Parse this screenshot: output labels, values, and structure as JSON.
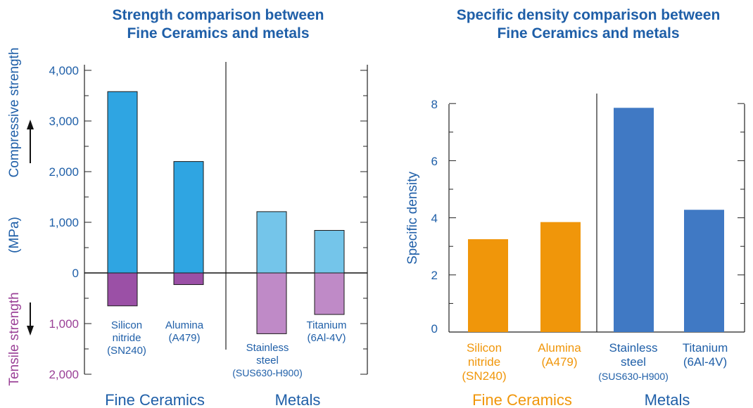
{
  "colors": {
    "blue_text": "#1f5fa8",
    "purple_text": "#9a3f96",
    "orange": "#f0960a",
    "ceramic_comp": "#2fa5e2",
    "metal_comp": "#74c5ea",
    "ceramic_tens": "#9b50a6",
    "metal_tens": "#bf8ac7",
    "density_metal": "#4079c4"
  },
  "chart_data": [
    {
      "type": "bar",
      "title_lines": [
        "Strength comparison between",
        "Fine Ceramics and metals"
      ],
      "ylabel_top": "Compressive strength",
      "ylabel_unit": "(MPa)",
      "ylabel_bottom": "Tensile strength",
      "yticks_up": [
        "4,000",
        "3,000",
        "2,000",
        "1,000",
        "0"
      ],
      "yticks_down": [
        "1,000",
        "2,000"
      ],
      "ylim": [
        -2000,
        4000
      ],
      "categories": [
        {
          "lines": [
            "Silicon",
            "nitride",
            "(SN240)"
          ],
          "group": "ceramic"
        },
        {
          "lines": [
            "Alumina",
            "(A479)"
          ],
          "group": "ceramic"
        },
        {
          "lines": [
            "Stainless",
            "steel",
            "(SUS630-H900)"
          ],
          "group": "metal"
        },
        {
          "lines": [
            "Titanium",
            "(6Al-4V)"
          ],
          "group": "metal"
        }
      ],
      "series": [
        {
          "name": "Compressive strength",
          "values": [
            3580,
            2200,
            1210,
            840
          ]
        },
        {
          "name": "Tensile strength",
          "values": [
            650,
            230,
            1200,
            820
          ]
        }
      ],
      "groups": [
        "Fine Ceramics",
        "Metals"
      ]
    },
    {
      "type": "bar",
      "title_lines": [
        "Specific density comparison between",
        "Fine Ceramics and metals"
      ],
      "ylabel": "Specific density",
      "yticks": [
        "8",
        "6",
        "4",
        "2",
        "0"
      ],
      "ylim": [
        0,
        8
      ],
      "categories": [
        {
          "lines": [
            "Silicon",
            "nitride",
            "(SN240)"
          ],
          "group": "ceramic"
        },
        {
          "lines": [
            "Alumina",
            "(A479)"
          ],
          "group": "ceramic"
        },
        {
          "lines": [
            "Stainless",
            "steel",
            "(SUS630-H900)"
          ],
          "group": "metal"
        },
        {
          "lines": [
            "Titanium",
            "(6Al-4V)"
          ],
          "group": "metal"
        }
      ],
      "values": [
        3.25,
        3.85,
        7.85,
        4.28
      ],
      "groups": [
        "Fine Ceramics",
        "Metals"
      ]
    }
  ]
}
